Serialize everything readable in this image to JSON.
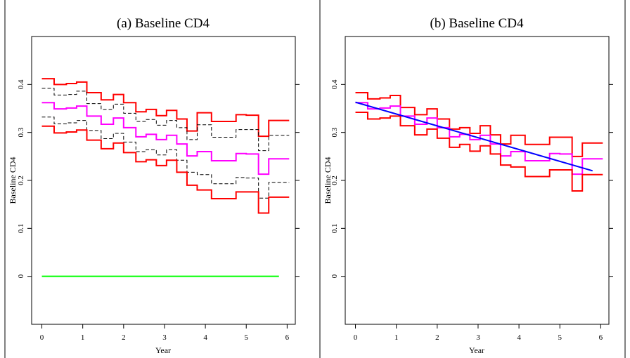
{
  "chart_data": [
    {
      "type": "line",
      "title": "(a) Baseline CD4",
      "xlabel": "Year",
      "ylabel": "Baseline CD4",
      "xlim": [
        -0.25,
        6.2
      ],
      "ylim": [
        -0.1,
        0.5
      ],
      "x_ticks": [
        {
          "value": 0,
          "label": "0"
        },
        {
          "value": 1,
          "label": "1"
        },
        {
          "value": 2,
          "label": "2"
        },
        {
          "value": 3,
          "label": "3"
        },
        {
          "value": 4,
          "label": "4"
        },
        {
          "value": 5,
          "label": "5"
        },
        {
          "value": 6,
          "label": "6"
        }
      ],
      "y_ticks": [
        {
          "value": 0,
          "label": "0"
        },
        {
          "value": 0.1,
          "label": "0.1"
        },
        {
          "value": 0.2,
          "label": "0.2"
        },
        {
          "value": 0.3,
          "label": "0.3"
        },
        {
          "value": 0.4,
          "label": "0.4"
        }
      ],
      "grid": false,
      "series": [
        {
          "style": "step",
          "color": "#ff0000",
          "dash": "",
          "width": 2,
          "x": [
            0,
            0.3,
            0.6,
            0.85,
            1.1,
            1.45,
            1.75,
            2.0,
            2.3,
            2.55,
            2.8,
            3.05,
            3.3,
            3.55,
            3.8,
            4.15,
            4.45,
            4.75,
            5.0,
            5.3,
            5.55,
            5.8
          ],
          "y": [
            0.412,
            0.4,
            0.402,
            0.405,
            0.383,
            0.368,
            0.379,
            0.362,
            0.343,
            0.348,
            0.335,
            0.346,
            0.328,
            0.303,
            0.341,
            0.323,
            0.323,
            0.337,
            0.336,
            0.292,
            0.325,
            0.325
          ]
        },
        {
          "style": "step",
          "color": "#000000",
          "dash": "5,3",
          "width": 1,
          "x": [
            0,
            0.3,
            0.6,
            0.85,
            1.1,
            1.45,
            1.75,
            2.0,
            2.3,
            2.55,
            2.8,
            3.05,
            3.3,
            3.55,
            3.8,
            4.15,
            4.45,
            4.75,
            5.0,
            5.3,
            5.55,
            5.8
          ],
          "y": [
            0.392,
            0.378,
            0.379,
            0.386,
            0.36,
            0.348,
            0.359,
            0.34,
            0.323,
            0.327,
            0.315,
            0.325,
            0.31,
            0.285,
            0.316,
            0.29,
            0.29,
            0.306,
            0.306,
            0.262,
            0.294,
            0.294
          ]
        },
        {
          "style": "step",
          "color": "#ff00ff",
          "dash": "",
          "width": 2,
          "x": [
            0,
            0.3,
            0.6,
            0.85,
            1.1,
            1.45,
            1.75,
            2.0,
            2.3,
            2.55,
            2.8,
            3.05,
            3.3,
            3.55,
            3.8,
            4.15,
            4.45,
            4.75,
            5.0,
            5.3,
            5.55,
            5.8
          ],
          "y": [
            0.362,
            0.349,
            0.351,
            0.355,
            0.334,
            0.317,
            0.33,
            0.31,
            0.291,
            0.296,
            0.285,
            0.294,
            0.276,
            0.251,
            0.26,
            0.241,
            0.241,
            0.256,
            0.255,
            0.213,
            0.245,
            0.245
          ]
        },
        {
          "style": "step",
          "color": "#000000",
          "dash": "5,3",
          "width": 1,
          "x": [
            0,
            0.3,
            0.6,
            0.85,
            1.1,
            1.45,
            1.75,
            2.0,
            2.3,
            2.55,
            2.8,
            3.05,
            3.3,
            3.55,
            3.8,
            4.15,
            4.45,
            4.75,
            5.0,
            5.3,
            5.55,
            5.8
          ],
          "y": [
            0.332,
            0.318,
            0.32,
            0.325,
            0.304,
            0.287,
            0.298,
            0.28,
            0.26,
            0.264,
            0.253,
            0.264,
            0.242,
            0.217,
            0.212,
            0.193,
            0.193,
            0.206,
            0.205,
            0.163,
            0.196,
            0.196
          ]
        },
        {
          "style": "step",
          "color": "#ff0000",
          "dash": "",
          "width": 2,
          "x": [
            0,
            0.3,
            0.6,
            0.85,
            1.1,
            1.45,
            1.75,
            2.0,
            2.3,
            2.55,
            2.8,
            3.05,
            3.3,
            3.55,
            3.8,
            4.15,
            4.45,
            4.75,
            5.0,
            5.3,
            5.55,
            5.8
          ],
          "y": [
            0.313,
            0.299,
            0.301,
            0.305,
            0.284,
            0.266,
            0.278,
            0.258,
            0.239,
            0.243,
            0.231,
            0.242,
            0.217,
            0.19,
            0.18,
            0.162,
            0.162,
            0.176,
            0.176,
            0.132,
            0.165,
            0.165
          ]
        },
        {
          "style": "line",
          "color": "#00ff00",
          "dash": "",
          "width": 2,
          "x": [
            0,
            5.8
          ],
          "y": [
            0,
            0
          ]
        }
      ]
    },
    {
      "type": "line",
      "title": "(b) Baseline CD4",
      "xlabel": "Year",
      "ylabel": "Baseline CD4",
      "xlim": [
        -0.25,
        6.2
      ],
      "ylim": [
        -0.1,
        0.5
      ],
      "x_ticks": [
        {
          "value": 0,
          "label": "0"
        },
        {
          "value": 1,
          "label": "1"
        },
        {
          "value": 2,
          "label": "2"
        },
        {
          "value": 3,
          "label": "3"
        },
        {
          "value": 4,
          "label": "4"
        },
        {
          "value": 5,
          "label": "5"
        },
        {
          "value": 6,
          "label": "6"
        }
      ],
      "y_ticks": [
        {
          "value": 0,
          "label": "0"
        },
        {
          "value": 0.1,
          "label": "0.1"
        },
        {
          "value": 0.2,
          "label": "0.2"
        },
        {
          "value": 0.3,
          "label": "0.3"
        },
        {
          "value": 0.4,
          "label": "0.4"
        }
      ],
      "grid": false,
      "series": [
        {
          "style": "step",
          "color": "#ff0000",
          "dash": "",
          "width": 2,
          "x": [
            0,
            0.3,
            0.6,
            0.85,
            1.1,
            1.45,
            1.75,
            2.0,
            2.3,
            2.55,
            2.8,
            3.05,
            3.3,
            3.55,
            3.8,
            4.15,
            4.45,
            4.75,
            5.0,
            5.3,
            5.55,
            5.8
          ],
          "y": [
            0.383,
            0.37,
            0.372,
            0.377,
            0.352,
            0.337,
            0.349,
            0.328,
            0.307,
            0.31,
            0.298,
            0.314,
            0.295,
            0.276,
            0.294,
            0.275,
            0.275,
            0.29,
            0.29,
            0.25,
            0.278,
            0.278
          ]
        },
        {
          "style": "step",
          "color": "#ff00ff",
          "dash": "",
          "width": 2,
          "x": [
            0,
            0.3,
            0.6,
            0.85,
            1.1,
            1.45,
            1.75,
            2.0,
            2.3,
            2.55,
            2.8,
            3.05,
            3.3,
            3.55,
            3.8,
            4.15,
            4.45,
            4.75,
            5.0,
            5.3,
            5.55,
            5.8
          ],
          "y": [
            0.362,
            0.349,
            0.351,
            0.355,
            0.334,
            0.317,
            0.33,
            0.31,
            0.291,
            0.296,
            0.285,
            0.294,
            0.276,
            0.251,
            0.26,
            0.241,
            0.241,
            0.256,
            0.255,
            0.213,
            0.245,
            0.245
          ]
        },
        {
          "style": "step",
          "color": "#ff0000",
          "dash": "",
          "width": 2,
          "x": [
            0,
            0.3,
            0.6,
            0.85,
            1.1,
            1.45,
            1.75,
            2.0,
            2.3,
            2.55,
            2.8,
            3.05,
            3.3,
            3.55,
            3.8,
            4.15,
            4.45,
            4.75,
            5.0,
            5.3,
            5.55,
            5.8
          ],
          "y": [
            0.342,
            0.328,
            0.33,
            0.334,
            0.314,
            0.295,
            0.307,
            0.288,
            0.269,
            0.275,
            0.261,
            0.272,
            0.255,
            0.232,
            0.228,
            0.208,
            0.208,
            0.222,
            0.222,
            0.178,
            0.212,
            0.212
          ]
        },
        {
          "style": "line",
          "color": "#0000ff",
          "dash": "",
          "width": 2,
          "x": [
            0,
            5.8
          ],
          "y": [
            0.363,
            0.22
          ]
        }
      ]
    }
  ]
}
